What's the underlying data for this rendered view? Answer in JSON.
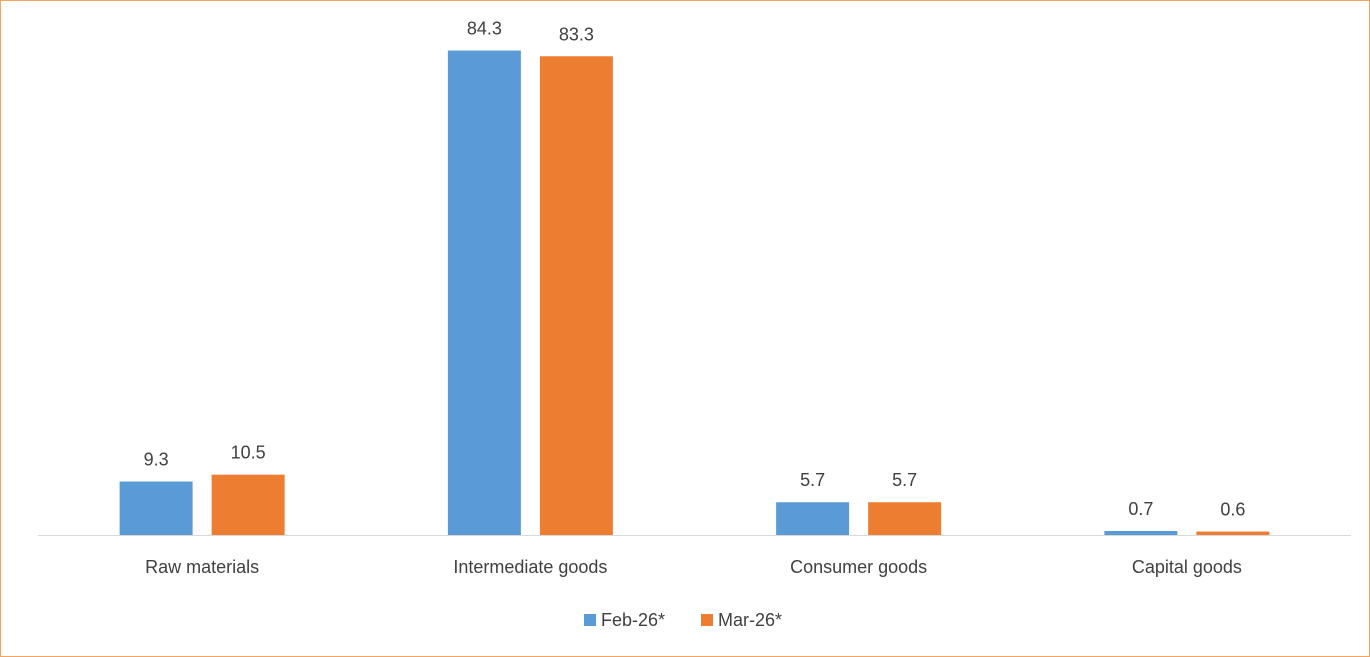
{
  "chart_data": {
    "type": "bar",
    "title": "",
    "xlabel": "",
    "ylabel": "",
    "categories": [
      "Raw materials",
      "Intermediate goods",
      "Consumer goods",
      "Capital goods"
    ],
    "series": [
      {
        "name": "Feb-26*",
        "color": "#5b9bd5",
        "values": [
          9.3,
          84.3,
          5.7,
          0.7
        ]
      },
      {
        "name": "Mar-26*",
        "color": "#ed7d31",
        "values": [
          10.5,
          83.3,
          5.7,
          0.6
        ]
      }
    ],
    "ylim": [
      0,
      90
    ],
    "grid": false,
    "data_labels": true,
    "legend_position": "bottom",
    "frame_color": "#f4a460"
  }
}
